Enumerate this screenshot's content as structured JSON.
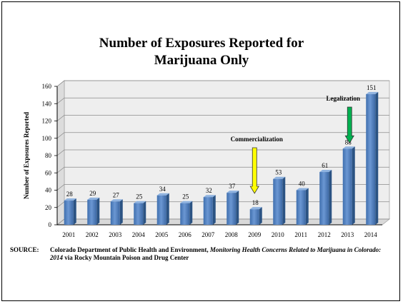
{
  "chart_data": {
    "type": "bar",
    "title": "Number of Exposures Reported for Marijuana Only",
    "title_lines": [
      "Number of Exposures Reported for",
      "Marijuana Only"
    ],
    "ylabel": "Number of Exposures Reported",
    "xlabel": "",
    "categories": [
      "2001",
      "2002",
      "2003",
      "2004",
      "2005",
      "2006",
      "2007",
      "2008",
      "2009",
      "2010",
      "2011",
      "2012",
      "2013",
      "2014"
    ],
    "values": [
      28,
      29,
      27,
      25,
      34,
      25,
      32,
      37,
      18,
      53,
      40,
      61,
      88,
      151
    ],
    "ylim": [
      0,
      160
    ],
    "yticks": [
      0,
      20,
      40,
      60,
      80,
      100,
      120,
      140,
      160
    ],
    "grid": true,
    "legend": "none",
    "bar_color": "#4f81bd",
    "annotations": [
      {
        "text": "Commercialization",
        "category": "2009",
        "arrow_color": "#ffff00"
      },
      {
        "text": "Legalization",
        "category": "2013",
        "arrow_color": "#00b050"
      }
    ]
  },
  "source": {
    "label": "SOURCE:",
    "part1": "Colorado Department of Public Health and Environment, ",
    "part2_italic": "Monitoring Health Concerns Related to Marijuana in Colorado:  2014",
    "part3": " via Rocky Mountain Poison and Drug Center"
  }
}
